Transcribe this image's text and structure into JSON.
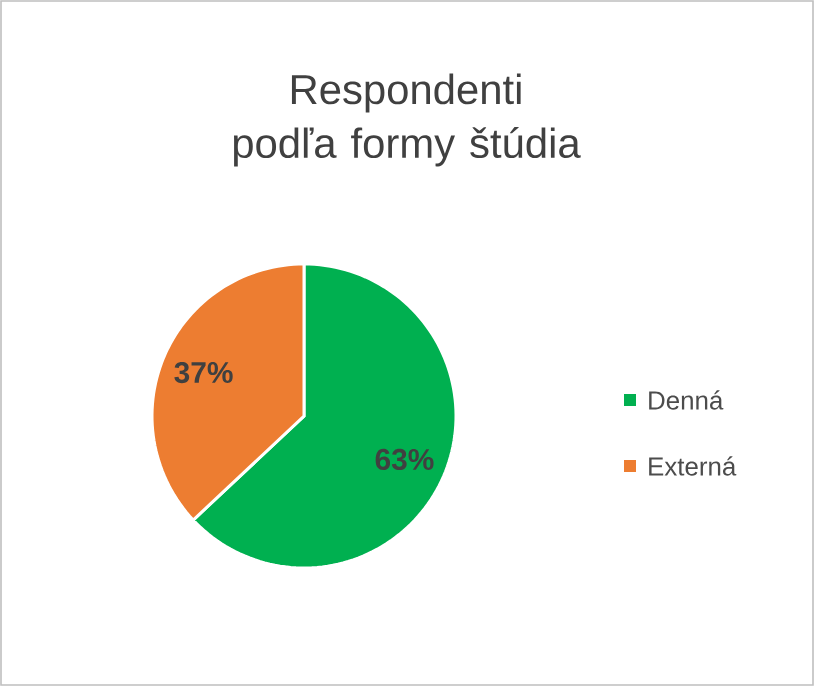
{
  "chart_data": {
    "type": "pie",
    "title": "Respondenti podľa formy štúdia",
    "categories": [
      "Denná",
      "Externá"
    ],
    "values": [
      63,
      37
    ],
    "value_labels": [
      "63%",
      "37%"
    ],
    "colors": [
      "#00b050",
      "#ed7d31"
    ],
    "legend": "right"
  }
}
